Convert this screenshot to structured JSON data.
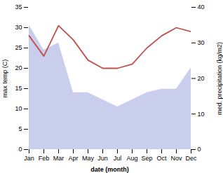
{
  "chart_data": {
    "type": "line",
    "categories": [
      "Jan",
      "Feb",
      "Mar",
      "Apr",
      "May",
      "Jun",
      "Jul",
      "Aug",
      "Sep",
      "Oct",
      "Nov",
      "Dec"
    ],
    "series": [
      {
        "type": "area",
        "axis": "y2",
        "color": "#c8ceec",
        "values": [
          35,
          28,
          30,
          16,
          16,
          14,
          12,
          14,
          16,
          17,
          17,
          23
        ]
      },
      {
        "type": "line",
        "color": "#c0504d",
        "values": [
          28,
          23,
          30.5,
          27,
          22,
          20,
          20,
          21,
          25,
          28,
          30,
          29
        ]
      }
    ],
    "xlabel": "date (month)",
    "ylabel": "max temp (C)",
    "y2label": "med. precipitation (kg/m2)",
    "ylim": [
      0,
      35
    ],
    "yticks": [
      0,
      5,
      10,
      15,
      20,
      25,
      30,
      35
    ],
    "y2lim": [
      0,
      40
    ],
    "y2ticks": [
      0,
      10,
      20,
      30,
      40
    ],
    "grid": false
  }
}
